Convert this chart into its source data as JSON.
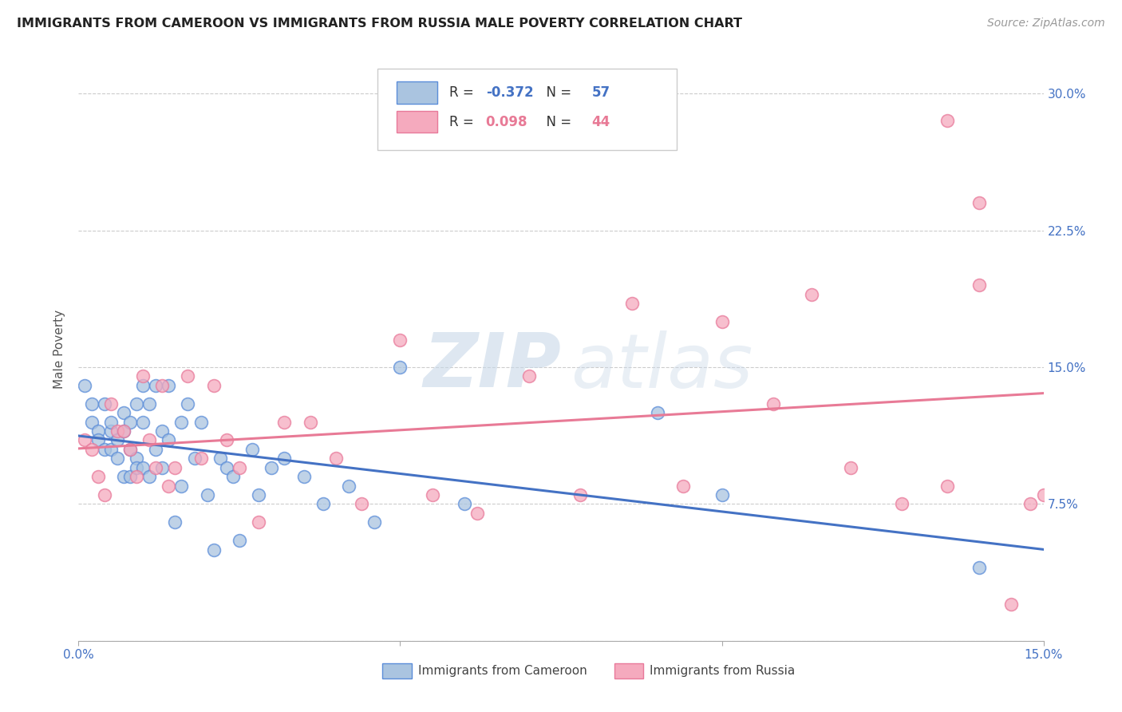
{
  "title": "IMMIGRANTS FROM CAMEROON VS IMMIGRANTS FROM RUSSIA MALE POVERTY CORRELATION CHART",
  "source": "Source: ZipAtlas.com",
  "ylabel": "Male Poverty",
  "xlim": [
    0.0,
    0.15
  ],
  "ylim": [
    0.0,
    0.32
  ],
  "xticks": [
    0.0,
    0.05,
    0.1,
    0.15
  ],
  "xtick_labels_bottom": [
    "0.0%",
    "",
    "",
    "15.0%"
  ],
  "yticks": [
    0.0,
    0.075,
    0.15,
    0.225,
    0.3
  ],
  "ytick_labels_right": [
    "",
    "7.5%",
    "15.0%",
    "22.5%",
    "30.0%"
  ],
  "cameroon_R": -0.372,
  "cameroon_N": 57,
  "russia_R": 0.098,
  "russia_N": 44,
  "cameroon_color": "#aac4e0",
  "russia_color": "#f5aabe",
  "cameroon_edge_color": "#5b8dd9",
  "russia_edge_color": "#e8799a",
  "cameroon_line_color": "#4472c4",
  "russia_line_color": "#e87a96",
  "right_tick_color": "#4472c4",
  "bottom_tick_color": "#4472c4",
  "cameroon_x": [
    0.001,
    0.002,
    0.002,
    0.003,
    0.003,
    0.004,
    0.004,
    0.005,
    0.005,
    0.005,
    0.006,
    0.006,
    0.007,
    0.007,
    0.007,
    0.008,
    0.008,
    0.008,
    0.009,
    0.009,
    0.009,
    0.01,
    0.01,
    0.01,
    0.011,
    0.011,
    0.012,
    0.012,
    0.013,
    0.013,
    0.014,
    0.014,
    0.015,
    0.016,
    0.016,
    0.017,
    0.018,
    0.019,
    0.02,
    0.021,
    0.022,
    0.023,
    0.024,
    0.025,
    0.027,
    0.028,
    0.03,
    0.032,
    0.035,
    0.038,
    0.042,
    0.046,
    0.05,
    0.06,
    0.09,
    0.1,
    0.14
  ],
  "cameroon_y": [
    0.14,
    0.12,
    0.13,
    0.115,
    0.11,
    0.13,
    0.105,
    0.115,
    0.12,
    0.105,
    0.11,
    0.1,
    0.125,
    0.115,
    0.09,
    0.12,
    0.105,
    0.09,
    0.13,
    0.1,
    0.095,
    0.14,
    0.12,
    0.095,
    0.13,
    0.09,
    0.14,
    0.105,
    0.095,
    0.115,
    0.14,
    0.11,
    0.065,
    0.085,
    0.12,
    0.13,
    0.1,
    0.12,
    0.08,
    0.05,
    0.1,
    0.095,
    0.09,
    0.055,
    0.105,
    0.08,
    0.095,
    0.1,
    0.09,
    0.075,
    0.085,
    0.065,
    0.15,
    0.075,
    0.125,
    0.08,
    0.04
  ],
  "russia_x": [
    0.001,
    0.002,
    0.003,
    0.004,
    0.005,
    0.006,
    0.007,
    0.008,
    0.009,
    0.01,
    0.011,
    0.012,
    0.013,
    0.014,
    0.015,
    0.017,
    0.019,
    0.021,
    0.023,
    0.025,
    0.028,
    0.032,
    0.036,
    0.04,
    0.044,
    0.05,
    0.055,
    0.062,
    0.07,
    0.078,
    0.086,
    0.094,
    0.1,
    0.108,
    0.114,
    0.12,
    0.128,
    0.135,
    0.14,
    0.145,
    0.148,
    0.15,
    0.14,
    0.135
  ],
  "russia_y": [
    0.11,
    0.105,
    0.09,
    0.08,
    0.13,
    0.115,
    0.115,
    0.105,
    0.09,
    0.145,
    0.11,
    0.095,
    0.14,
    0.085,
    0.095,
    0.145,
    0.1,
    0.14,
    0.11,
    0.095,
    0.065,
    0.12,
    0.12,
    0.1,
    0.075,
    0.165,
    0.08,
    0.07,
    0.145,
    0.08,
    0.185,
    0.085,
    0.175,
    0.13,
    0.19,
    0.095,
    0.075,
    0.285,
    0.195,
    0.02,
    0.075,
    0.08,
    0.24,
    0.085
  ],
  "watermark_zip": "ZIP",
  "watermark_atlas": "atlas",
  "background_color": "#ffffff",
  "grid_color": "#cccccc"
}
